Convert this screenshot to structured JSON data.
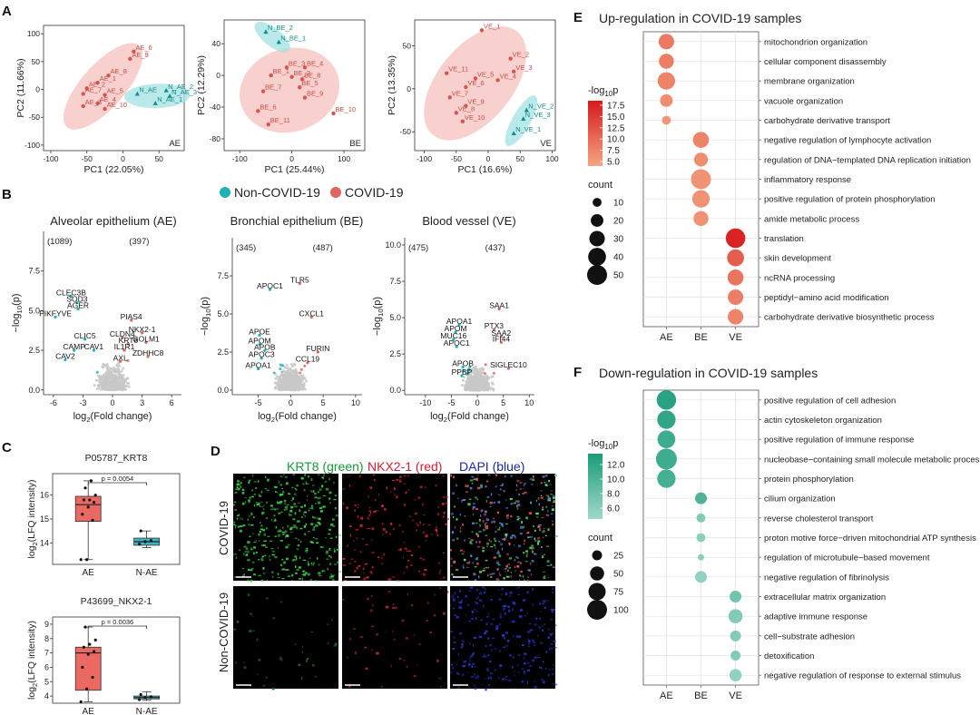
{
  "panel_labels": {
    "a": "A",
    "b": "B",
    "c": "C",
    "d": "D",
    "e": "E",
    "f": "F"
  },
  "colors": {
    "covid": "#e06560",
    "noncovid": "#1fb3b3",
    "grey": "#c8c8c8",
    "up_hi": "#d7191c",
    "up_lo": "#f4a582",
    "down_hi": "#1a9b7a",
    "down_lo": "#9fd9c8"
  },
  "pca": [
    {
      "tag": "AE",
      "xlabel": "PC1 (22.05%)",
      "ylabel": "PC2 (11.66%)",
      "xticks": [
        "-100",
        "-50",
        "0",
        "50"
      ],
      "yticks": [
        "100",
        "50",
        "0",
        "-50",
        "-100"
      ],
      "xlim": [
        -110,
        85
      ],
      "ylim": [
        -110,
        115
      ],
      "points": [
        {
          "l": "AE_6",
          "x": 15,
          "y": 68,
          "g": "covid"
        },
        {
          "l": "AE_9",
          "x": 10,
          "y": 55,
          "g": "covid"
        },
        {
          "l": "AE_8",
          "x": -20,
          "y": 25,
          "g": "covid"
        },
        {
          "l": "AE_1",
          "x": -35,
          "y": 12,
          "g": "covid"
        },
        {
          "l": "AE_2",
          "x": -50,
          "y": 2,
          "g": "covid"
        },
        {
          "l": "AE_7",
          "x": -55,
          "y": -8,
          "g": "covid"
        },
        {
          "l": "AE_5",
          "x": -25,
          "y": -10,
          "g": "covid"
        },
        {
          "l": "AE_4",
          "x": -35,
          "y": -25,
          "g": "covid"
        },
        {
          "l": "AE_3",
          "x": -55,
          "y": -30,
          "g": "covid"
        },
        {
          "l": "AE_10",
          "x": -25,
          "y": -35,
          "g": "covid"
        },
        {
          "l": "N_AE",
          "x": 20,
          "y": -8,
          "g": "noncovid"
        },
        {
          "l": "N_AE_2",
          "x": 60,
          "y": -2,
          "g": "noncovid"
        },
        {
          "l": "N_AE_3",
          "x": 65,
          "y": -12,
          "g": "noncovid"
        },
        {
          "l": "N_AE_1",
          "x": 45,
          "y": -25,
          "g": "noncovid"
        }
      ]
    },
    {
      "tag": "BE",
      "xlabel": "PC1 (25.44%)",
      "ylabel": "PC2 (12.29%)",
      "xticks": [
        "-100",
        "0",
        "100"
      ],
      "yticks": [
        "40",
        "0",
        "-40",
        "-80"
      ],
      "xlim": [
        -130,
        140
      ],
      "ylim": [
        -95,
        70
      ],
      "points": [
        {
          "l": "N_BE_2",
          "x": -50,
          "y": 55,
          "g": "noncovid"
        },
        {
          "l": "N_BE_1",
          "x": -25,
          "y": 42,
          "g": "noncovid"
        },
        {
          "l": "BE_3",
          "x": -10,
          "y": 10,
          "g": "covid"
        },
        {
          "l": "BE_4",
          "x": 25,
          "y": 10,
          "g": "covid"
        },
        {
          "l": "BE_1",
          "x": -40,
          "y": 0,
          "g": "covid"
        },
        {
          "l": "BE_2",
          "x": 0,
          "y": -2,
          "g": "covid"
        },
        {
          "l": "BE_8",
          "x": 20,
          "y": -5,
          "g": "covid"
        },
        {
          "l": "BE_5",
          "x": 15,
          "y": -15,
          "g": "covid"
        },
        {
          "l": "BE_7",
          "x": -55,
          "y": -20,
          "g": "covid"
        },
        {
          "l": "BE_9",
          "x": 25,
          "y": -28,
          "g": "covid"
        },
        {
          "l": "BE_6",
          "x": -65,
          "y": -45,
          "g": "covid"
        },
        {
          "l": "BE_10",
          "x": 80,
          "y": -48,
          "g": "covid"
        },
        {
          "l": "BE_11",
          "x": -45,
          "y": -62,
          "g": "covid"
        }
      ]
    },
    {
      "tag": "VE",
      "xlabel": "PC1 (16.6%)",
      "ylabel": "PC2 (13.35%)",
      "xticks": [
        "-100",
        "-50",
        "0",
        "50",
        "100"
      ],
      "yticks": [
        "50",
        "0",
        "-50"
      ],
      "xlim": [
        -115,
        105
      ],
      "ylim": [
        -72,
        80
      ],
      "points": [
        {
          "l": "VE_1",
          "x": -10,
          "y": 68,
          "g": "covid"
        },
        {
          "l": "VE_2",
          "x": 35,
          "y": 35,
          "g": "covid"
        },
        {
          "l": "VE_3",
          "x": 40,
          "y": 20,
          "g": "covid"
        },
        {
          "l": "VE_11",
          "x": -65,
          "y": 18,
          "g": "covid"
        },
        {
          "l": "VE_4",
          "x": 15,
          "y": 10,
          "g": "covid"
        },
        {
          "l": "VE_5",
          "x": -20,
          "y": 12,
          "g": "covid"
        },
        {
          "l": "VE_6",
          "x": -35,
          "y": 2,
          "g": "covid"
        },
        {
          "l": "VE_7",
          "x": -60,
          "y": -10,
          "g": "covid"
        },
        {
          "l": "VE_9",
          "x": -35,
          "y": -20,
          "g": "covid"
        },
        {
          "l": "VE_8",
          "x": -50,
          "y": -28,
          "g": "covid"
        },
        {
          "l": "VE_10",
          "x": -40,
          "y": -38,
          "g": "covid"
        },
        {
          "l": "N_VE_2",
          "x": 60,
          "y": -25,
          "g": "noncovid"
        },
        {
          "l": "N_VE_3",
          "x": 55,
          "y": -35,
          "g": "noncovid"
        },
        {
          "l": "N_VE_1",
          "x": 40,
          "y": -52,
          "g": "noncovid"
        }
      ]
    }
  ],
  "legend_b": {
    "noncovid": "Non-COVID-19",
    "covid": "COVID-19"
  },
  "volcano": [
    {
      "title": "Alveolar epithelium (AE)",
      "down": "(1089)",
      "up": "(397)",
      "xlabel": "log",
      "xlabel_sub": "2",
      "xlabel_rest": "(Fold change)",
      "ylabel": "−log",
      "ylabel_sub": "10",
      "ylabel_rest": "(p)",
      "xticks": [
        "-6",
        "-3",
        "0",
        "3",
        "6"
      ],
      "yticks": [
        "0.0",
        "2.5",
        "5.0",
        "7.5"
      ],
      "xlim": [
        -7,
        7
      ],
      "ylim": [
        -0.3,
        10
      ],
      "genes": [
        {
          "n": "CLEC3B",
          "x": -4.2,
          "y": 5.9
        },
        {
          "n": "SOD3",
          "x": -3.6,
          "y": 5.5
        },
        {
          "n": "AGER",
          "x": -3.5,
          "y": 5.1
        },
        {
          "n": "PIKFYVE",
          "x": -5.8,
          "y": 4.6
        },
        {
          "n": "CLIC5",
          "x": -2.8,
          "y": 3.2
        },
        {
          "n": "CAMP",
          "x": -3.9,
          "y": 2.5
        },
        {
          "n": "CAV1",
          "x": -1.9,
          "y": 2.5
        },
        {
          "n": "CAV2",
          "x": -4.8,
          "y": 1.9
        },
        {
          "n": "PIAS4",
          "x": 1.9,
          "y": 4.4
        },
        {
          "n": "NKX2-1",
          "x": 3.0,
          "y": 3.6
        },
        {
          "n": "CLDN4",
          "x": 1.0,
          "y": 3.3
        },
        {
          "n": "GOLM1",
          "x": 3.4,
          "y": 3.0
        },
        {
          "n": "KRT8",
          "x": 1.6,
          "y": 2.9
        },
        {
          "n": "IL1R1",
          "x": 1.2,
          "y": 2.5
        },
        {
          "n": "ZDHHC8",
          "x": 3.6,
          "y": 2.1
        },
        {
          "n": "AXL",
          "x": 0.8,
          "y": 1.8
        }
      ]
    },
    {
      "title": "Bronchial epithelium (BE)",
      "down": "(345)",
      "up": "(487)",
      "xlabel": "log",
      "xlabel_sub": "2",
      "xlabel_rest": "(Fold change)",
      "ylabel": "−log",
      "ylabel_sub": "10",
      "ylabel_rest": "(p)",
      "xticks": [
        "-5",
        "0",
        "5",
        "10"
      ],
      "yticks": [
        "0.0",
        "2.5",
        "5.0",
        "7.5"
      ],
      "xlim": [
        -9,
        11
      ],
      "ylim": [
        -0.3,
        10
      ],
      "genes": [
        {
          "n": "APOC1",
          "x": -3.2,
          "y": 6.6
        },
        {
          "n": "TLR5",
          "x": 1.4,
          "y": 7.0
        },
        {
          "n": "CXCL1",
          "x": 3.2,
          "y": 4.8
        },
        {
          "n": "APOE",
          "x": -4.8,
          "y": 3.6
        },
        {
          "n": "APOM",
          "x": -4.8,
          "y": 3.0
        },
        {
          "n": "APOB",
          "x": -4.0,
          "y": 2.6
        },
        {
          "n": "APOC3",
          "x": -4.5,
          "y": 2.1
        },
        {
          "n": "FURIN",
          "x": 4.2,
          "y": 2.5
        },
        {
          "n": "APOA1",
          "x": -5.0,
          "y": 1.4
        },
        {
          "n": "CCL19",
          "x": 2.6,
          "y": 1.8
        }
      ]
    },
    {
      "title": "Blood vessel (VE)",
      "down": "(475)",
      "up": "(437)",
      "xlabel": "log",
      "xlabel_sub": "2",
      "xlabel_rest": "(Fold change)",
      "ylabel": "−log",
      "ylabel_sub": "10",
      "ylabel_rest": "(p)",
      "xticks": [
        "-10",
        "-5",
        "0",
        "5",
        "10"
      ],
      "yticks": [
        "0.0",
        "2.5",
        "5.0",
        "7.5",
        "10.0"
      ],
      "xlim": [
        -14,
        11
      ],
      "ylim": [
        -0.3,
        10.5
      ],
      "genes": [
        {
          "n": "SAA1",
          "x": 4.2,
          "y": 5.6
        },
        {
          "n": "APOA1",
          "x": -3.5,
          "y": 4.5
        },
        {
          "n": "PTX3",
          "x": 3.2,
          "y": 4.2
        },
        {
          "n": "APOM",
          "x": -4.2,
          "y": 4.0
        },
        {
          "n": "SAA2",
          "x": 4.6,
          "y": 3.7
        },
        {
          "n": "MUC16",
          "x": -4.6,
          "y": 3.5
        },
        {
          "n": "IFI44",
          "x": 4.6,
          "y": 3.3
        },
        {
          "n": "APOC1",
          "x": -4.0,
          "y": 3.0
        },
        {
          "n": "APOB",
          "x": -2.8,
          "y": 1.6
        },
        {
          "n": "SIGLEC10",
          "x": 6.0,
          "y": 1.5
        },
        {
          "n": "PPBP",
          "x": -3.0,
          "y": 1.0
        }
      ]
    }
  ],
  "boxplots": [
    {
      "title": "P05787_KRT8",
      "p": "p = 0.0054",
      "ylabel": "log",
      "ylabel_sub": "2",
      "ylabel_rest": "(LFQ intensity)",
      "yticks": [
        "14",
        "15",
        "16"
      ],
      "ylim": [
        13.1,
        16.9
      ],
      "categories": [
        "AE",
        "N-AE"
      ],
      "boxes": [
        {
          "min": 13.3,
          "q1": 14.9,
          "med": 15.6,
          "q3": 15.95,
          "max": 16.6
        },
        {
          "min": 13.8,
          "q1": 13.9,
          "med": 14.05,
          "q3": 14.2,
          "max": 14.5
        }
      ],
      "points": [
        [
          13.3,
          13.3,
          14.95,
          15.2,
          15.5,
          15.7,
          15.8,
          15.8,
          16.0,
          16.3,
          16.6
        ],
        [
          13.95,
          14.05,
          14.1,
          14.5
        ]
      ]
    },
    {
      "title": "P43699_NKX2-1",
      "p": "p = 0.0036",
      "ylabel": "log",
      "ylabel_sub": "2",
      "ylabel_rest": "(LFQ intensity)",
      "yticks": [
        "4",
        "5",
        "6",
        "7",
        "8",
        "9"
      ],
      "ylim": [
        3.5,
        9.5
      ],
      "categories": [
        "AE",
        "N-AE"
      ],
      "boxes": [
        {
          "min": 3.6,
          "q1": 4.4,
          "med": 7.0,
          "q3": 7.4,
          "max": 8.8
        },
        {
          "min": 3.7,
          "q1": 3.8,
          "med": 3.9,
          "q3": 4.0,
          "max": 4.3
        }
      ],
      "points": [
        [
          3.6,
          4.5,
          5.3,
          6.0,
          6.9,
          7.1,
          7.4,
          7.6,
          7.9,
          8.8
        ],
        [
          3.75,
          3.9,
          3.95,
          4.1
        ]
      ]
    }
  ],
  "panel_d": {
    "title_green": "KRT8 (green)",
    "title_red": "NKX2-1 (red)",
    "title_blue": "DAPI (blue)",
    "row1": "COVID-19",
    "row2": "Non-COVID-19"
  },
  "enrich_up": {
    "title": "Up-regulation in COVID-19 samples",
    "legend_color_title": "-log",
    "legend_color_sub": "10",
    "legend_color_rest": "p",
    "color_ticks": [
      "17.5",
      "15.0",
      "12.5",
      "10.0",
      "7.5",
      "5.0"
    ],
    "color_range": [
      4.0,
      18.5
    ],
    "count_title": "count",
    "count_ticks": [
      10,
      20,
      30,
      40,
      50
    ],
    "groups": [
      "AE",
      "BE",
      "VE"
    ],
    "terms": [
      {
        "t": "mitochondrion organization",
        "g": 0,
        "c": 30,
        "p": 8.5
      },
      {
        "t": "cellular component disassembly",
        "g": 0,
        "c": 28,
        "p": 8.0
      },
      {
        "t": "membrane organization",
        "g": 0,
        "c": 38,
        "p": 7.5
      },
      {
        "t": "vacuole organization",
        "g": 0,
        "c": 20,
        "p": 6.5
      },
      {
        "t": "carbohydrate derivative transport",
        "g": 0,
        "c": 10,
        "p": 5.5
      },
      {
        "t": "negative regulation of lymphocyte activation",
        "g": 1,
        "c": 32,
        "p": 7.5
      },
      {
        "t": "regulation of DNA−templated DNA replication initiation",
        "g": 1,
        "c": 24,
        "p": 6.5
      },
      {
        "t": "inflammatory response",
        "g": 1,
        "c": 50,
        "p": 6.0
      },
      {
        "t": "positive regulation of protein phosphorylation",
        "g": 1,
        "c": 38,
        "p": 6.0
      },
      {
        "t": "amide metabolic process",
        "g": 1,
        "c": 28,
        "p": 6.0
      },
      {
        "t": "translation",
        "g": 2,
        "c": 48,
        "p": 17.5
      },
      {
        "t": "skin development",
        "g": 2,
        "c": 36,
        "p": 11.5
      },
      {
        "t": "ncRNA processing",
        "g": 2,
        "c": 32,
        "p": 9.0
      },
      {
        "t": "peptidyl−amino acid modification",
        "g": 2,
        "c": 30,
        "p": 8.0
      },
      {
        "t": "carbohydrate derivative biosynthetic process",
        "g": 2,
        "c": 30,
        "p": 7.5
      }
    ]
  },
  "enrich_down": {
    "title": "Down-regulation in COVID-19 samples",
    "legend_color_title": "-log",
    "legend_color_sub": "10",
    "legend_color_rest": "p",
    "color_ticks": [
      "12.0",
      "10.0",
      "8.0",
      "6.0"
    ],
    "color_range": [
      4.5,
      13.5
    ],
    "count_title": "count",
    "count_ticks": [
      25,
      50,
      75,
      100
    ],
    "groups": [
      "AE",
      "BE",
      "VE"
    ],
    "terms": [
      {
        "t": "positive regulation of cell adhesion",
        "g": 0,
        "c": 95,
        "p": 12.5
      },
      {
        "t": "actin cytoskeleton organization",
        "g": 0,
        "c": 85,
        "p": 12.0
      },
      {
        "t": "positive regulation of immune response",
        "g": 0,
        "c": 80,
        "p": 11.0
      },
      {
        "t": "nucleobase−containing small molecule metabolic process",
        "g": 0,
        "c": 110,
        "p": 11.0
      },
      {
        "t": "protein phosphorylation",
        "g": 0,
        "c": 85,
        "p": 10.5
      },
      {
        "t": "cilium organization",
        "g": 1,
        "c": 35,
        "p": 10.0
      },
      {
        "t": "reverse cholesterol transport",
        "g": 1,
        "c": 20,
        "p": 6.5
      },
      {
        "t": "proton motive force−driven mitochondrial ATP synthesis",
        "g": 1,
        "c": 20,
        "p": 6.0
      },
      {
        "t": "regulation of microtubule−based movement",
        "g": 1,
        "c": 10,
        "p": 6.0
      },
      {
        "t": "negative regulation of fibrinolysis",
        "g": 1,
        "c": 35,
        "p": 5.5
      },
      {
        "t": "extracellular matrix organization",
        "g": 2,
        "c": 35,
        "p": 7.5
      },
      {
        "t": "adaptive immune response",
        "g": 2,
        "c": 50,
        "p": 6.5
      },
      {
        "t": "cell−substrate adhesion",
        "g": 2,
        "c": 30,
        "p": 6.5
      },
      {
        "t": "detoxification",
        "g": 2,
        "c": 25,
        "p": 6.5
      },
      {
        "t": "negative regulation of response to external stimulus",
        "g": 2,
        "c": 38,
        "p": 5.5
      }
    ]
  }
}
